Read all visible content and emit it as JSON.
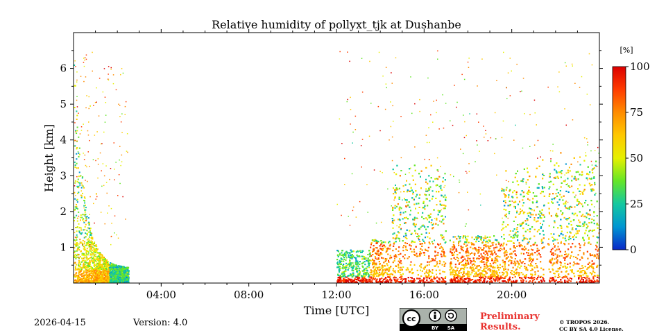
{
  "chart_data": {
    "type": "heatmap",
    "title": "Relative humidity of pollyxt_tjk at Dushanbe",
    "xlabel": "Time [UTC]",
    "ylabel": "Height [km]",
    "x_range_hours": [
      0,
      24
    ],
    "y_range_km": [
      0,
      7
    ],
    "x_ticks": [
      {
        "hour": 4,
        "label": "04:00"
      },
      {
        "hour": 8,
        "label": "08:00"
      },
      {
        "hour": 12,
        "label": "12:00"
      },
      {
        "hour": 16,
        "label": "16:00"
      },
      {
        "hour": 20,
        "label": "20:00"
      }
    ],
    "y_ticks": [
      {
        "km": 1,
        "label": "1"
      },
      {
        "km": 2,
        "label": "2"
      },
      {
        "km": 3,
        "label": "3"
      },
      {
        "km": 4,
        "label": "4"
      },
      {
        "km": 5,
        "label": "5"
      },
      {
        "km": 6,
        "label": "6"
      }
    ],
    "colorbar": {
      "unit": "[%]",
      "range": [
        0,
        100
      ],
      "ticks": [
        {
          "value": 0,
          "label": "0"
        },
        {
          "value": 25,
          "label": "25"
        },
        {
          "value": 50,
          "label": "50"
        },
        {
          "value": 75,
          "label": "75"
        },
        {
          "value": 100,
          "label": "100"
        }
      ],
      "colors": [
        "#0a28c8",
        "#0096d2",
        "#14c8a0",
        "#64e628",
        "#e6f000",
        "#ffc800",
        "#ff8c00",
        "#ff3c00",
        "#dc0000"
      ]
    },
    "data_regions": [
      {
        "start_h": 0.0,
        "end_h": 2.5,
        "note": "early morning profiles, decreasing top height"
      },
      {
        "start_h": 12.0,
        "end_h": 24.0,
        "note": "afternoon and night profiles"
      }
    ],
    "data_gaps_h": [
      17.05,
      21.55
    ]
  },
  "footer": {
    "date": "2026-04-15",
    "version": "Version: 4.0",
    "preliminary_line1": "Preliminary",
    "preliminary_line2": "Results.",
    "copyright_line1": "© TROPOS 2026.",
    "copyright_line2": "CC BY SA 4.0 License.",
    "license_badge": {
      "cc": "cc",
      "by": "BY",
      "sa": "SA"
    }
  }
}
